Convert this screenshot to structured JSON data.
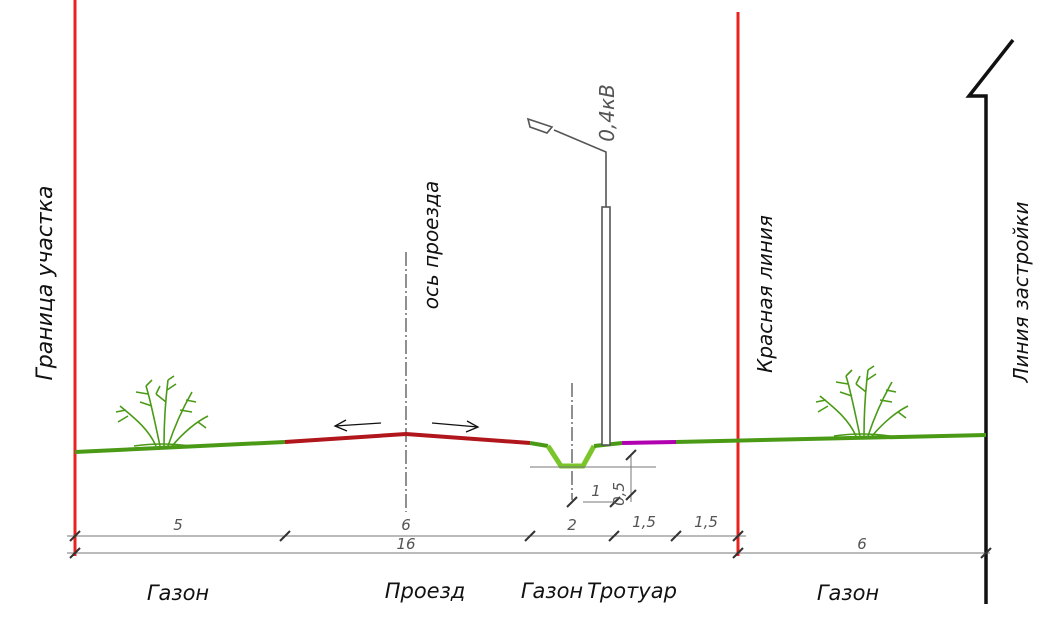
{
  "labels": {
    "plot_boundary": "Граница участка",
    "driveway_axis": "ось проезда",
    "voltage": "0,4кВ",
    "red_line": "Красная линия",
    "building_line": "Линия застройки"
  },
  "zones": {
    "lawn_left": "Газон",
    "driveway": "Проезд",
    "lawn_mid": "Газон",
    "sidewalk": "Тротуар",
    "lawn_right": "Газон"
  },
  "dimensions": {
    "d5": "5",
    "d6": "6",
    "d2": "2",
    "d15a": "1,5",
    "d15b": "1,5",
    "total16": "16",
    "d6right": "6",
    "ditch_width": "1",
    "ditch_depth": "0,5"
  },
  "colors": {
    "red_line": "#e8231f",
    "lawn": "#4a9a16",
    "road": "#b0161c",
    "sidewalk": "#b000b0",
    "ditch": "#7ac62a",
    "ink": "#111111",
    "dim_line": "#777777"
  }
}
